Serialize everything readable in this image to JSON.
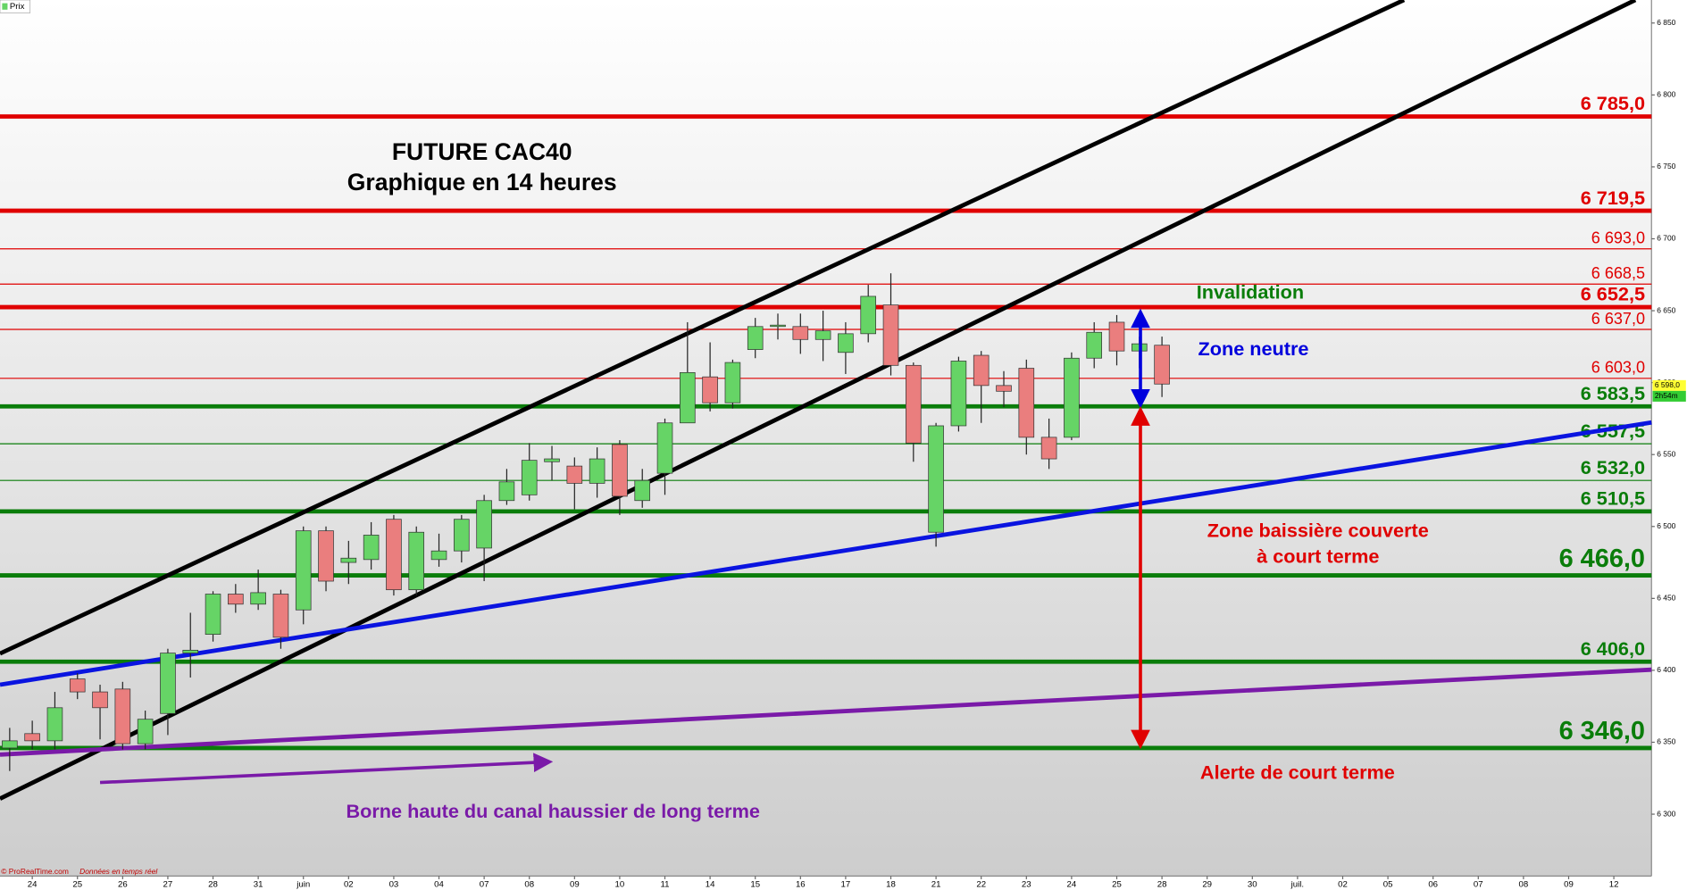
{
  "chart_data": {
    "type": "candlestick",
    "title": "FUTURE CAC40",
    "subtitle": "Graphique en 14 heures",
    "legend": "Prix",
    "source": "© ProRealTime.com",
    "source_note": "Données en temps réel",
    "colors": {
      "up": "#66d466",
      "down": "#ea7e7e"
    },
    "categories": [
      null,
      "24",
      null,
      "25",
      null,
      "26",
      null,
      "27",
      null,
      "28",
      null,
      "31",
      null,
      "juin",
      null,
      "02",
      null,
      "03",
      null,
      "04",
      null,
      "07",
      null,
      "08",
      null,
      "09",
      null,
      "10",
      null,
      "11",
      null,
      "14",
      null,
      "15",
      null,
      "16",
      null,
      "17",
      null,
      "18",
      null,
      "21",
      null,
      "22",
      null,
      "23",
      null,
      "24",
      null,
      "25",
      null,
      "28",
      null,
      "29",
      null,
      "30",
      null,
      "juil.",
      null,
      "02",
      null,
      "05",
      null,
      "06",
      null,
      "07",
      null,
      "08",
      null,
      "09",
      null,
      "12",
      null
    ],
    "open": [
      6346,
      6356,
      6351,
      6394,
      6385,
      6387,
      6349,
      6370,
      6412,
      6425,
      6453,
      6446,
      6453,
      6442,
      6497,
      6475,
      6477,
      6505,
      6456,
      6477,
      6483,
      6485,
      6518,
      6522,
      6545,
      6542,
      6530,
      6557,
      6518,
      6537,
      6572,
      6604,
      6586,
      6623,
      6639,
      6639,
      6630,
      6621,
      6634,
      6654,
      6612,
      6496,
      6570,
      6619,
      6598,
      6610,
      6562,
      6562,
      6617,
      6642,
      6622,
      6626,
      null,
      null,
      null,
      null,
      null,
      null,
      null,
      null,
      null,
      null,
      null,
      null,
      null,
      null,
      null,
      null,
      null,
      null,
      null,
      null,
      null
    ],
    "high": [
      6360,
      6365,
      6385,
      6398,
      6390,
      6392,
      6372,
      6415,
      6440,
      6455,
      6460,
      6470,
      6456,
      6500,
      6500,
      6490,
      6503,
      6508,
      6500,
      6495,
      6508,
      6522,
      6540,
      6558,
      6556,
      6548,
      6555,
      6560,
      6540,
      6575,
      6642,
      6628,
      6616,
      6645,
      6648,
      6648,
      6650,
      6642,
      6668,
      6676,
      6614,
      6572,
      6618,
      6622,
      6608,
      6616,
      6575,
      6621,
      6642,
      6647,
      6632,
      6632,
      null,
      null,
      null,
      null,
      null,
      null,
      null,
      null,
      null,
      null,
      null,
      null,
      null,
      null,
      null,
      null,
      null,
      null,
      null,
      null,
      null
    ],
    "low": [
      6330,
      6345,
      6345,
      6380,
      6352,
      6345,
      6345,
      6355,
      6395,
      6420,
      6440,
      6442,
      6415,
      6432,
      6455,
      6460,
      6470,
      6452,
      6452,
      6472,
      6475,
      6462,
      6515,
      6518,
      6532,
      6512,
      6520,
      6508,
      6513,
      6522,
      6572,
      6580,
      6582,
      6617,
      6630,
      6620,
      6615,
      6606,
      6628,
      6605,
      6545,
      6486,
      6566,
      6572,
      6583,
      6550,
      6540,
      6560,
      6610,
      6612,
      6610,
      6590,
      null,
      null,
      null,
      null,
      null,
      null,
      null,
      null,
      null,
      null,
      null,
      null,
      null,
      null,
      null,
      null,
      null,
      null,
      null,
      null,
      null
    ],
    "close": [
      6351,
      6351,
      6374,
      6385,
      6374,
      6349,
      6366,
      6412,
      6414,
      6453,
      6446,
      6454,
      6423,
      6497,
      6462,
      6478,
      6494,
      6456,
      6496,
      6483,
      6505,
      6518,
      6531,
      6546,
      6547,
      6530,
      6547,
      6521,
      6532,
      6572,
      6607,
      6586,
      6614,
      6639,
      6640,
      6630,
      6636,
      6634,
      6660,
      6612,
      6558,
      6570,
      6615,
      6598,
      6594,
      6562,
      6547,
      6617,
      6635,
      6622,
      6627,
      6599,
      null,
      null,
      null,
      null,
      null,
      null,
      null,
      null,
      null,
      null,
      null,
      null,
      null,
      null,
      null,
      null,
      null,
      null,
      null,
      null,
      null
    ],
    "ylim": [
      6257,
      6866
    ],
    "yticks": [
      {
        "value": 6300,
        "label": "6 300"
      },
      {
        "value": 6350,
        "label": "6 350"
      },
      {
        "value": 6400,
        "label": "6 400"
      },
      {
        "value": 6450,
        "label": "6 450"
      },
      {
        "value": 6500,
        "label": "6 500"
      },
      {
        "value": 6550,
        "label": "6 550"
      },
      {
        "value": 6600,
        "label": "6 600"
      },
      {
        "value": 6650,
        "label": "6 650"
      },
      {
        "value": 6700,
        "label": "6 700"
      },
      {
        "value": 6750,
        "label": "6 750"
      },
      {
        "value": 6800,
        "label": "6 800"
      },
      {
        "value": 6850,
        "label": "6 850"
      }
    ],
    "levels": [
      {
        "value": 6785,
        "label": "6 785,0",
        "color": "#e00000",
        "weight": "thick",
        "size": "medium"
      },
      {
        "value": 6719.5,
        "label": "6 719,5",
        "color": "#e00000",
        "weight": "thick",
        "size": "medium"
      },
      {
        "value": 6693,
        "label": "6 693,0",
        "color": "#e00000",
        "weight": "thin",
        "size": "small"
      },
      {
        "value": 6668.5,
        "label": "6 668,5",
        "color": "#e00000",
        "weight": "thin",
        "size": "small"
      },
      {
        "value": 6652.5,
        "label": "6 652,5",
        "color": "#e00000",
        "weight": "thick",
        "size": "medium"
      },
      {
        "value": 6637,
        "label": "6 637,0",
        "color": "#e00000",
        "weight": "thin",
        "size": "small"
      },
      {
        "value": 6603,
        "label": "6 603,0",
        "color": "#e00000",
        "weight": "thin",
        "size": "small"
      },
      {
        "value": 6583.5,
        "label": "6 583,5",
        "color": "#0a7d0a",
        "weight": "thick",
        "size": "medium"
      },
      {
        "value": 6557.5,
        "label": "6 557,5",
        "color": "#0a7d0a",
        "weight": "thin",
        "size": "medium"
      },
      {
        "value": 6532,
        "label": "6 532,0",
        "color": "#0a7d0a",
        "weight": "thin",
        "size": "medium"
      },
      {
        "value": 6510.5,
        "label": "6 510,5",
        "color": "#0a7d0a",
        "weight": "thick",
        "size": "medium"
      },
      {
        "value": 6466,
        "label": "6 466,0",
        "color": "#0a7d0a",
        "weight": "thick",
        "size": "large"
      },
      {
        "value": 6406,
        "label": "6 406,0",
        "color": "#0a7d0a",
        "weight": "thick",
        "size": "medium"
      },
      {
        "value": 6346,
        "label": "6 346,0",
        "color": "#0a7d0a",
        "weight": "thick",
        "size": "large"
      }
    ],
    "annotations": [
      {
        "text": "Invalidation",
        "color": "#0a7d0a"
      },
      {
        "text": "Zone neutre",
        "color": "#0000dd"
      },
      {
        "text": "Zone baissière couverte",
        "color": "#e00000"
      },
      {
        "text": "à court terme",
        "color": "#e00000"
      },
      {
        "text": "Alerte de court terme",
        "color": "#e00000"
      },
      {
        "text": "Borne haute du canal haussier de long terme",
        "color": "#7a1aa8"
      }
    ],
    "current_price": {
      "value": 6598,
      "label": "6 598,0"
    },
    "timer": "2h54m"
  }
}
